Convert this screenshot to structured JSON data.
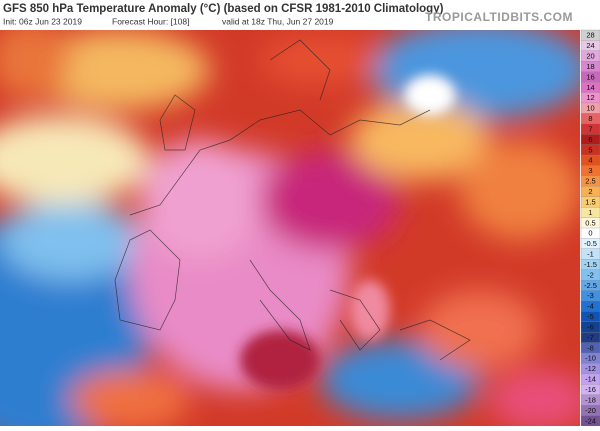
{
  "header": {
    "title": "GFS 850 hPa Temperature Anomaly (°C) (based on CFSR 1981-2010 Climatology)",
    "init": "Init: 06z Jun 23 2019",
    "forecast_hour": "Forecast Hour: [108]",
    "valid": "valid at 18z Thu, Jun 27 2019",
    "watermark": "TROPICALTIDBITS.COM"
  },
  "colorbar": {
    "levels": [
      28,
      24,
      20,
      18,
      16,
      14,
      12,
      10,
      8,
      7,
      6,
      5,
      4,
      3,
      2.5,
      2,
      1.5,
      1,
      0.5,
      0,
      -0.5,
      -1,
      -1.5,
      -2,
      -2.5,
      -3,
      -4,
      -5,
      -6,
      -7,
      -8,
      -10,
      -12,
      -14,
      -16,
      -18,
      -20,
      -24
    ],
    "colors": [
      "#d0d0d0",
      "#e8c8e8",
      "#e0a8dc",
      "#d888d0",
      "#c868bc",
      "#e070c4",
      "#f090cc",
      "#f0a0a8",
      "#e46464",
      "#d03434",
      "#b01c1c",
      "#c83222",
      "#e05222",
      "#f07232",
      "#f89242",
      "#f8b052",
      "#f8cc72",
      "#f8e6a0",
      "#fff6d8",
      "#ffffff",
      "#e2f2ff",
      "#c2e2f8",
      "#a2d2f2",
      "#82c0f0",
      "#62a8e8",
      "#4290e0",
      "#2270d0",
      "#1252b2",
      "#124292",
      "#223a82",
      "#5262b2",
      "#8282d2",
      "#a292e2",
      "#c2a2f0",
      "#d2b2f2",
      "#b292d2",
      "#9272b2",
      "#725292"
    ]
  }
}
